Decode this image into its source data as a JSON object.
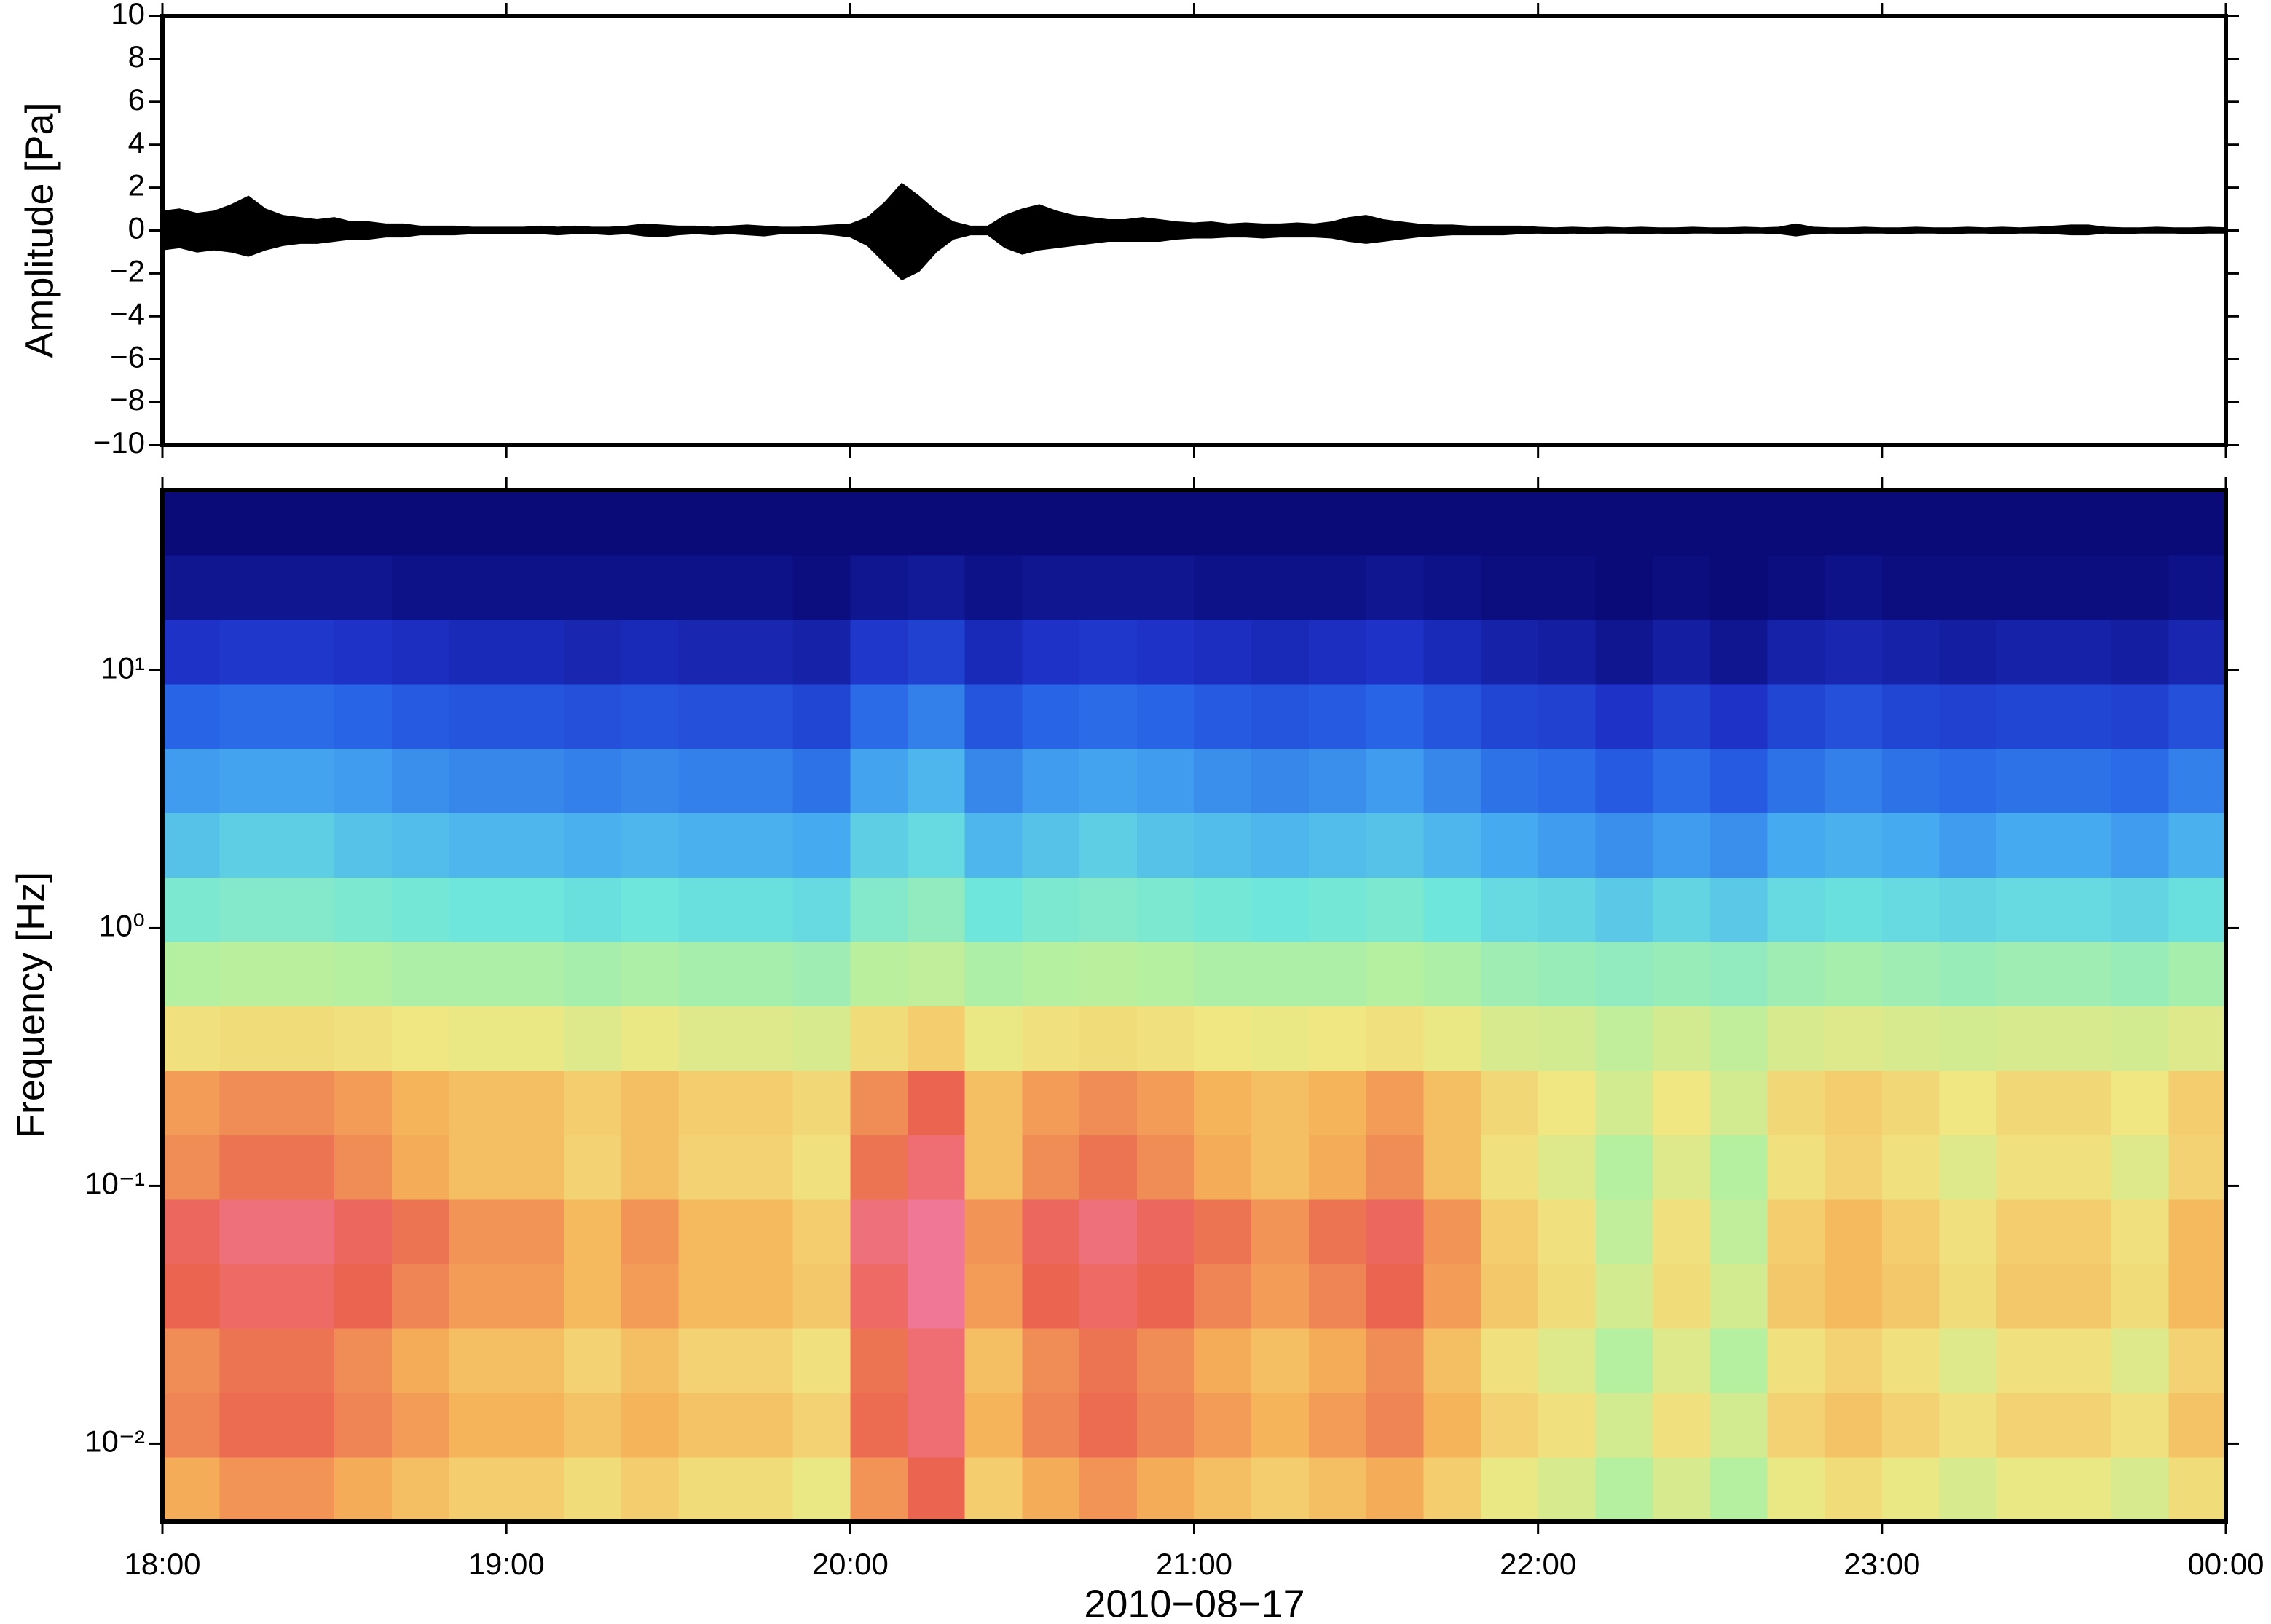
{
  "chart_data": [
    {
      "type": "line",
      "ylabel": "Amplitude [Pa]",
      "x": [
        0,
        3,
        6,
        9,
        12,
        15,
        18,
        21,
        24,
        27,
        30,
        33,
        36,
        39,
        42,
        45,
        48,
        51,
        54,
        57,
        60,
        63,
        66,
        69,
        72,
        75,
        78,
        81,
        84,
        87,
        90,
        93,
        96,
        99,
        102,
        105,
        108,
        111,
        114,
        117,
        120,
        123,
        126,
        129,
        132,
        135,
        138,
        141,
        144,
        147,
        150,
        153,
        156,
        159,
        162,
        165,
        168,
        171,
        174,
        177,
        180,
        183,
        186,
        189,
        192,
        195,
        198,
        201,
        204,
        207,
        210,
        213,
        216,
        219,
        222,
        225,
        228,
        231,
        234,
        237,
        240,
        243,
        246,
        249,
        252,
        255,
        258,
        261,
        264,
        267,
        270,
        273,
        276,
        279,
        282,
        285,
        288,
        291,
        294,
        297,
        300,
        303,
        306,
        309,
        312,
        315,
        318,
        321,
        324,
        327,
        330,
        333,
        336,
        339,
        342,
        345,
        348,
        351,
        354,
        357,
        360
      ],
      "series": [
        {
          "color": "#000000",
          "values": [
            0.9,
            1.0,
            0.8,
            0.9,
            1.2,
            1.6,
            1.0,
            0.7,
            0.6,
            0.5,
            0.6,
            0.4,
            0.4,
            0.3,
            0.3,
            0.2,
            0.2,
            0.2,
            0.15,
            0.15,
            0.15,
            0.15,
            0.2,
            0.15,
            0.2,
            0.15,
            0.15,
            0.2,
            0.3,
            0.25,
            0.2,
            0.2,
            0.15,
            0.2,
            0.25,
            0.2,
            0.15,
            0.15,
            0.2,
            0.25,
            0.3,
            0.6,
            1.3,
            2.2,
            1.6,
            0.9,
            0.4,
            0.2,
            0.2,
            0.7,
            1.0,
            1.2,
            0.9,
            0.7,
            0.6,
            0.5,
            0.5,
            0.6,
            0.5,
            0.4,
            0.35,
            0.4,
            0.3,
            0.35,
            0.3,
            0.3,
            0.35,
            0.3,
            0.4,
            0.6,
            0.7,
            0.5,
            0.4,
            0.3,
            0.25,
            0.25,
            0.2,
            0.2,
            0.2,
            0.2,
            0.15,
            0.12,
            0.15,
            0.12,
            0.15,
            0.12,
            0.15,
            0.12,
            0.12,
            0.15,
            0.12,
            0.12,
            0.15,
            0.12,
            0.15,
            0.3,
            0.15,
            0.12,
            0.12,
            0.15,
            0.12,
            0.12,
            0.15,
            0.12,
            0.12,
            0.15,
            0.12,
            0.15,
            0.12,
            0.15,
            0.2,
            0.25,
            0.25,
            0.15,
            0.12,
            0.12,
            0.15,
            0.12,
            0.12,
            0.15,
            0.12
          ]
        },
        {
          "color": "#000000",
          "values": [
            -0.9,
            -0.8,
            -1.0,
            -0.9,
            -1.0,
            -1.2,
            -0.9,
            -0.7,
            -0.6,
            -0.6,
            -0.5,
            -0.4,
            -0.4,
            -0.3,
            -0.3,
            -0.2,
            -0.2,
            -0.2,
            -0.15,
            -0.15,
            -0.15,
            -0.15,
            -0.15,
            -0.2,
            -0.15,
            -0.15,
            -0.2,
            -0.15,
            -0.25,
            -0.3,
            -0.2,
            -0.15,
            -0.2,
            -0.15,
            -0.2,
            -0.25,
            -0.15,
            -0.15,
            -0.15,
            -0.2,
            -0.3,
            -0.7,
            -1.5,
            -2.3,
            -1.9,
            -1.0,
            -0.4,
            -0.2,
            -0.2,
            -0.8,
            -1.1,
            -0.9,
            -0.8,
            -0.7,
            -0.6,
            -0.5,
            -0.5,
            -0.5,
            -0.5,
            -0.4,
            -0.35,
            -0.35,
            -0.3,
            -0.3,
            -0.35,
            -0.3,
            -0.3,
            -0.3,
            -0.35,
            -0.5,
            -0.6,
            -0.5,
            -0.4,
            -0.3,
            -0.25,
            -0.2,
            -0.2,
            -0.2,
            -0.2,
            -0.15,
            -0.12,
            -0.15,
            -0.12,
            -0.15,
            -0.12,
            -0.12,
            -0.15,
            -0.12,
            -0.15,
            -0.12,
            -0.12,
            -0.15,
            -0.12,
            -0.12,
            -0.15,
            -0.25,
            -0.15,
            -0.12,
            -0.15,
            -0.12,
            -0.12,
            -0.15,
            -0.12,
            -0.12,
            -0.15,
            -0.12,
            -0.12,
            -0.15,
            -0.12,
            -0.12,
            -0.15,
            -0.2,
            -0.2,
            -0.12,
            -0.15,
            -0.12,
            -0.12,
            -0.12,
            -0.15,
            -0.12,
            -0.12
          ]
        }
      ],
      "xlim": [
        0,
        360
      ],
      "xticks": [
        0,
        60,
        120,
        180,
        240,
        300,
        360
      ],
      "ylim": [
        -10,
        10
      ],
      "yticks": [
        {
          "value": -10,
          "label": "−10"
        },
        {
          "value": -8,
          "label": "−8"
        },
        {
          "value": -6,
          "label": "−6"
        },
        {
          "value": -4,
          "label": "−4"
        },
        {
          "value": -2,
          "label": "−2"
        },
        0,
        2,
        4,
        6,
        8,
        10
      ]
    },
    {
      "type": "heatmap",
      "ylabel": "Frequency [Hz]",
      "xlabel": "2010−08−17",
      "xbins": [
        0,
        10,
        20,
        30,
        40,
        50,
        60,
        70,
        80,
        90,
        100,
        110,
        120,
        130,
        140,
        150,
        160,
        170,
        180,
        190,
        200,
        210,
        220,
        230,
        240,
        250,
        260,
        270,
        280,
        290,
        300,
        310,
        320,
        330,
        340,
        350,
        360
      ],
      "ybins": [
        0.005,
        0.0089,
        0.0158,
        0.0281,
        0.05,
        0.0889,
        0.158,
        0.281,
        0.5,
        0.889,
        1.58,
        2.81,
        5,
        8.89,
        15.8,
        28.1,
        50
      ],
      "values": [
        [
          7.1,
          7.4,
          7.4,
          7.1,
          6.8,
          6.5,
          6.5,
          6.2,
          6.5,
          6.2,
          6.2,
          5.9,
          7.4,
          8.0,
          6.5,
          7.1,
          7.4,
          7.1,
          6.8,
          6.5,
          6.8,
          7.1,
          6.5,
          5.9,
          5.6,
          5.0,
          5.6,
          5.0,
          5.9,
          6.2,
          5.9,
          5.6,
          5.9,
          5.9,
          5.6,
          6.2
        ],
        [
          7.6,
          7.9,
          7.9,
          7.6,
          7.3,
          7.0,
          7.0,
          6.7,
          7.0,
          6.7,
          6.7,
          6.4,
          7.9,
          8.5,
          7.0,
          7.6,
          7.9,
          7.6,
          7.3,
          7.0,
          7.3,
          7.6,
          7.0,
          6.4,
          6.1,
          5.5,
          6.1,
          5.5,
          6.4,
          6.7,
          6.4,
          6.1,
          6.4,
          6.4,
          6.1,
          6.7
        ],
        [
          7.5,
          7.8,
          7.8,
          7.5,
          7.1,
          6.8,
          6.8,
          6.4,
          6.8,
          6.4,
          6.4,
          6.1,
          7.8,
          8.5,
          6.8,
          7.5,
          7.8,
          7.5,
          7.1,
          6.8,
          7.1,
          7.5,
          6.8,
          6.1,
          5.7,
          5.0,
          5.7,
          5.0,
          6.1,
          6.4,
          6.1,
          5.7,
          6.1,
          6.1,
          5.7,
          6.4
        ],
        [
          8.0,
          8.3,
          8.3,
          8.0,
          7.6,
          7.3,
          7.3,
          6.9,
          7.3,
          6.9,
          6.9,
          6.6,
          8.3,
          9.0,
          7.3,
          8.0,
          8.3,
          8.0,
          7.6,
          7.3,
          7.6,
          8.0,
          7.3,
          6.6,
          6.2,
          5.5,
          6.2,
          5.5,
          6.6,
          6.9,
          6.6,
          6.2,
          6.6,
          6.6,
          6.2,
          6.9
        ],
        [
          8.2,
          8.6,
          8.6,
          8.2,
          7.8,
          7.4,
          7.4,
          6.9,
          7.4,
          6.9,
          6.9,
          6.5,
          8.6,
          9.5,
          7.4,
          8.2,
          8.6,
          8.2,
          7.8,
          7.4,
          7.8,
          8.2,
          7.4,
          6.5,
          6.1,
          5.2,
          6.1,
          5.2,
          6.5,
          6.9,
          6.5,
          6.1,
          6.5,
          6.5,
          6.1,
          6.9
        ],
        [
          7.5,
          7.8,
          7.8,
          7.5,
          7.1,
          6.8,
          6.8,
          6.4,
          6.8,
          6.4,
          6.4,
          6.1,
          7.8,
          8.5,
          6.8,
          7.5,
          7.8,
          7.5,
          7.1,
          6.8,
          7.1,
          7.5,
          6.8,
          6.1,
          5.7,
          5.0,
          5.7,
          5.0,
          6.1,
          6.4,
          6.1,
          5.7,
          6.1,
          6.1,
          5.7,
          6.4
        ],
        [
          7.3,
          7.5,
          7.5,
          7.3,
          7.0,
          6.8,
          6.8,
          6.5,
          6.8,
          6.5,
          6.5,
          6.3,
          7.5,
          8.0,
          6.8,
          7.3,
          7.5,
          7.3,
          7.0,
          6.8,
          7.0,
          7.3,
          6.8,
          6.3,
          6.0,
          5.5,
          6.0,
          5.5,
          6.3,
          6.5,
          6.3,
          6.0,
          6.3,
          6.3,
          6.0,
          6.5
        ],
        [
          6.1,
          6.2,
          6.2,
          6.1,
          6.0,
          5.9,
          5.9,
          5.7,
          5.9,
          5.7,
          5.7,
          5.6,
          6.2,
          6.5,
          5.9,
          6.1,
          6.2,
          6.1,
          6.0,
          5.9,
          6.0,
          6.1,
          5.9,
          5.6,
          5.5,
          5.2,
          5.5,
          5.2,
          5.6,
          5.7,
          5.6,
          5.5,
          5.6,
          5.6,
          5.5,
          5.7
        ],
        [
          5.0,
          5.1,
          5.1,
          5.0,
          4.9,
          4.9,
          4.9,
          4.8,
          4.9,
          4.8,
          4.8,
          4.7,
          5.1,
          5.2,
          4.9,
          5.0,
          5.1,
          5.0,
          4.9,
          4.9,
          4.9,
          5.0,
          4.9,
          4.7,
          4.6,
          4.5,
          4.6,
          4.5,
          4.7,
          4.8,
          4.7,
          4.6,
          4.7,
          4.7,
          4.6,
          4.8
        ],
        [
          4.2,
          4.3,
          4.3,
          4.2,
          4.1,
          4.0,
          4.0,
          3.9,
          4.0,
          3.9,
          3.9,
          3.8,
          4.3,
          4.5,
          4.0,
          4.2,
          4.3,
          4.2,
          4.1,
          4.0,
          4.1,
          4.2,
          4.0,
          3.8,
          3.7,
          3.5,
          3.7,
          3.5,
          3.8,
          3.9,
          3.8,
          3.7,
          3.8,
          3.8,
          3.7,
          3.9
        ],
        [
          3.4,
          3.6,
          3.6,
          3.4,
          3.3,
          3.2,
          3.2,
          3.1,
          3.2,
          3.1,
          3.1,
          3.0,
          3.6,
          3.8,
          3.2,
          3.4,
          3.6,
          3.4,
          3.3,
          3.2,
          3.3,
          3.4,
          3.2,
          3.0,
          2.8,
          2.6,
          2.8,
          2.6,
          3.0,
          3.1,
          3.0,
          2.8,
          3.0,
          3.0,
          2.8,
          3.1
        ],
        [
          2.8,
          2.9,
          2.9,
          2.8,
          2.6,
          2.5,
          2.5,
          2.4,
          2.5,
          2.4,
          2.4,
          2.2,
          2.9,
          3.2,
          2.5,
          2.8,
          2.9,
          2.8,
          2.6,
          2.5,
          2.6,
          2.8,
          2.5,
          2.2,
          2.1,
          1.8,
          2.1,
          1.8,
          2.2,
          2.4,
          2.2,
          2.1,
          2.2,
          2.2,
          2.1,
          2.4
        ],
        [
          2.0,
          2.1,
          2.1,
          2.0,
          1.8,
          1.7,
          1.7,
          1.6,
          1.7,
          1.6,
          1.6,
          1.4,
          2.1,
          2.4,
          1.7,
          2.0,
          2.1,
          2.0,
          1.8,
          1.7,
          1.8,
          2.0,
          1.7,
          1.4,
          1.3,
          1.0,
          1.3,
          1.0,
          1.4,
          1.6,
          1.4,
          1.3,
          1.4,
          1.4,
          1.3,
          1.6
        ],
        [
          1.0,
          1.1,
          1.1,
          1.0,
          0.9,
          0.8,
          0.8,
          0.7,
          0.8,
          0.7,
          0.7,
          0.6,
          1.1,
          1.3,
          0.8,
          1.0,
          1.1,
          1.0,
          0.9,
          0.8,
          0.9,
          1.0,
          0.8,
          0.6,
          0.5,
          0.3,
          0.5,
          0.3,
          0.6,
          0.7,
          0.6,
          0.5,
          0.6,
          0.6,
          0.5,
          0.7
        ],
        [
          0.3,
          0.3,
          0.3,
          0.3,
          0.2,
          0.2,
          0.2,
          0.2,
          0.2,
          0.2,
          0.2,
          0.1,
          0.3,
          0.4,
          0.2,
          0.3,
          0.3,
          0.3,
          0.2,
          0.2,
          0.2,
          0.3,
          0.2,
          0.1,
          0.1,
          0,
          0.1,
          0,
          0.1,
          0.2,
          0.1,
          0.1,
          0.1,
          0.1,
          0.1,
          0.2
        ],
        [
          0,
          0,
          0,
          0,
          0,
          0,
          0,
          0,
          0,
          0,
          0,
          0,
          0,
          0,
          0,
          0,
          0,
          0,
          0,
          0,
          0,
          0,
          0,
          0,
          0,
          0,
          0,
          0,
          0,
          0,
          0,
          0,
          0,
          0,
          0,
          0
        ]
      ],
      "zlim": [
        0,
        9
      ],
      "colormap": [
        "#0a0a78",
        "#1e32c8",
        "#2864e6",
        "#46aaf0",
        "#6ee6dc",
        "#b4f0a0",
        "#f0e682",
        "#f5b45a",
        "#eb6450",
        "#f07896"
      ],
      "xlim": [
        0,
        360
      ],
      "xticks": [
        {
          "value": 0,
          "label": "18:00"
        },
        {
          "value": 60,
          "label": "19:00"
        },
        {
          "value": 120,
          "label": "20:00"
        },
        {
          "value": 180,
          "label": "21:00"
        },
        {
          "value": 240,
          "label": "22:00"
        },
        {
          "value": 300,
          "label": "23:00"
        },
        {
          "value": 360,
          "label": "00:00"
        }
      ],
      "ylim": [
        0.005,
        50
      ],
      "ylog": true,
      "yticks": [
        {
          "value": 0.01,
          "label": "10⁻²"
        },
        {
          "value": 0.1,
          "label": "10⁻¹"
        },
        {
          "value": 1,
          "label": "10⁰"
        },
        {
          "value": 10,
          "label": "10¹"
        }
      ]
    }
  ]
}
